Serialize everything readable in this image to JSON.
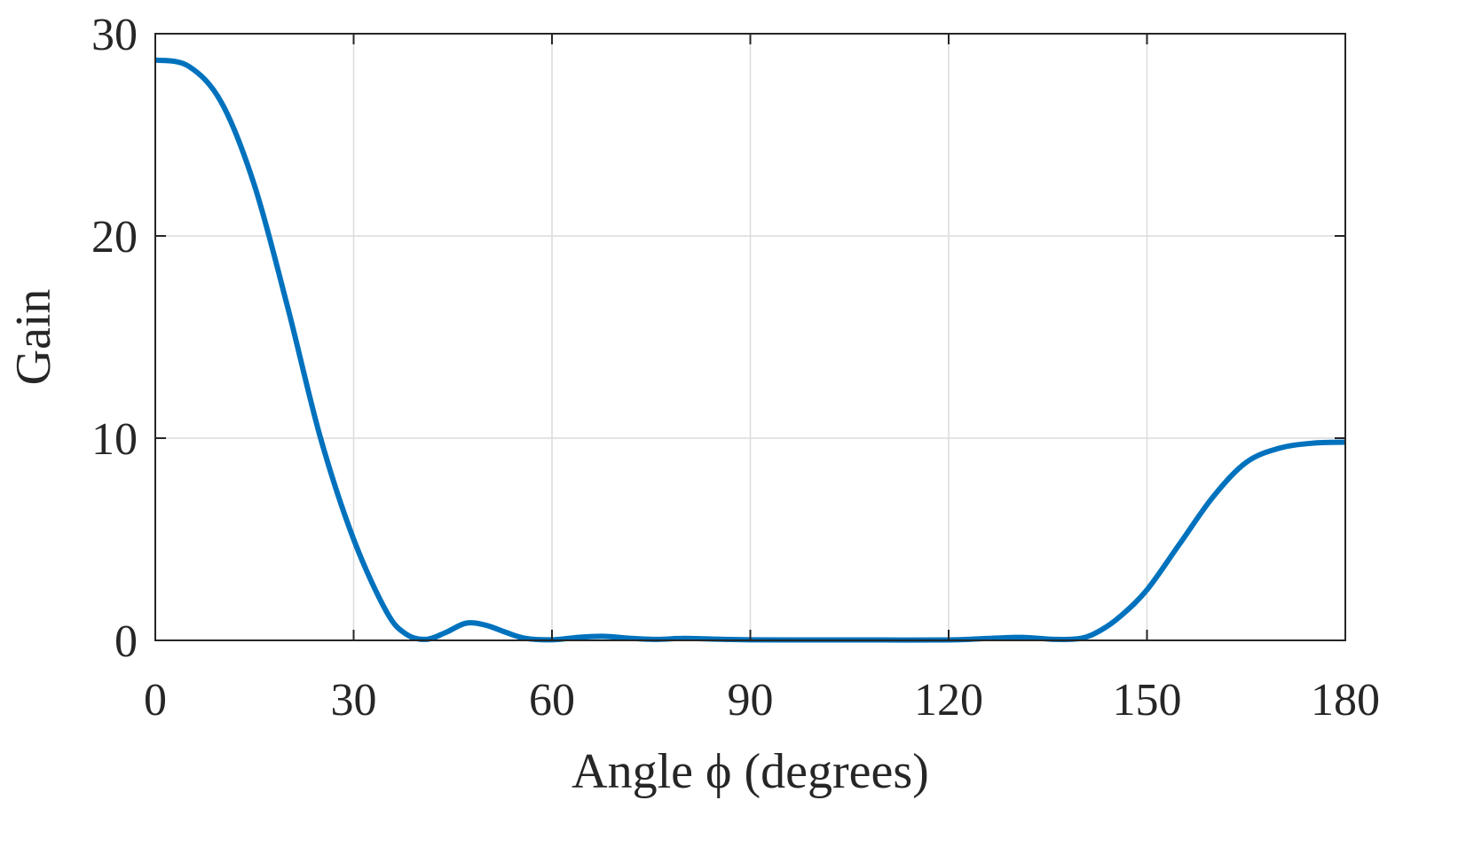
{
  "chart_data": {
    "type": "line",
    "title": "",
    "xlabel": "Angle ϕ (degrees)",
    "ylabel": "Gain",
    "xlim": [
      0,
      180
    ],
    "ylim": [
      0,
      30
    ],
    "xticks": [
      "0",
      "30",
      "60",
      "90",
      "120",
      "150",
      "180"
    ],
    "yticks": [
      "0",
      "10",
      "20",
      "30"
    ],
    "grid": true,
    "line_color": "#0072BD",
    "series": [
      {
        "x": [
          0,
          5,
          10,
          15,
          20,
          25,
          30,
          35,
          38,
          41,
          44,
          47,
          50,
          53,
          56,
          60,
          64,
          68,
          72,
          76,
          80,
          85,
          90,
          100,
          110,
          120,
          125,
          131,
          136,
          140,
          143,
          146,
          150,
          155,
          160,
          165,
          170,
          175,
          180
        ],
        "y": [
          28.7,
          28.4,
          26.6,
          22.5,
          16.5,
          10.0,
          5.0,
          1.4,
          0.3,
          0.05,
          0.4,
          0.85,
          0.75,
          0.4,
          0.1,
          0.03,
          0.15,
          0.2,
          0.1,
          0.05,
          0.1,
          0.06,
          0.03,
          0.02,
          0.02,
          0.02,
          0.08,
          0.15,
          0.05,
          0.1,
          0.5,
          1.2,
          2.5,
          4.8,
          7.1,
          8.8,
          9.5,
          9.75,
          9.8
        ]
      }
    ]
  }
}
